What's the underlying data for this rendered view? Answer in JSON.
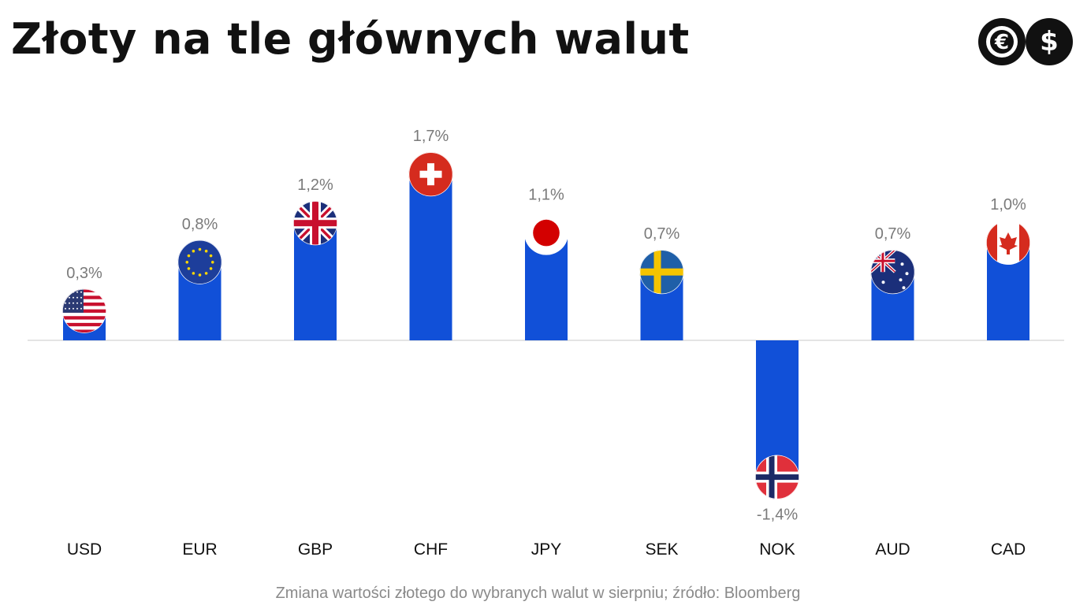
{
  "title": "Złoty na tle głównych walut",
  "logo": {
    "icons": [
      "euro-icon",
      "dollar-icon"
    ],
    "color": "#111111"
  },
  "caption": "Zmiana wartości złotego do wybranych walut w sierpniu; źródło: Bloomberg",
  "chart_data": {
    "type": "bar",
    "categories": [
      "USD",
      "EUR",
      "GBP",
      "CHF",
      "JPY",
      "SEK",
      "NOK",
      "AUD",
      "CAD"
    ],
    "values": [
      0.3,
      0.8,
      1.2,
      1.7,
      1.1,
      0.7,
      -1.4,
      0.7,
      1.0
    ],
    "value_labels": [
      "0,3%",
      "0,8%",
      "1,2%",
      "1,7%",
      "1,1%",
      "0,7%",
      "-1,4%",
      "0,7%",
      "1,0%"
    ],
    "flags": [
      "us-flag-icon",
      "eu-flag-icon",
      "uk-flag-icon",
      "swiss-flag-icon",
      "japan-flag-icon",
      "sweden-flag-icon",
      "norway-flag-icon",
      "australia-flag-icon",
      "canada-flag-icon"
    ],
    "bar_color": "#1150d8",
    "title": "",
    "xlabel": "",
    "ylabel": "",
    "ylim": [
      -1.7,
      1.8
    ],
    "grid": false,
    "legend": "none"
  }
}
